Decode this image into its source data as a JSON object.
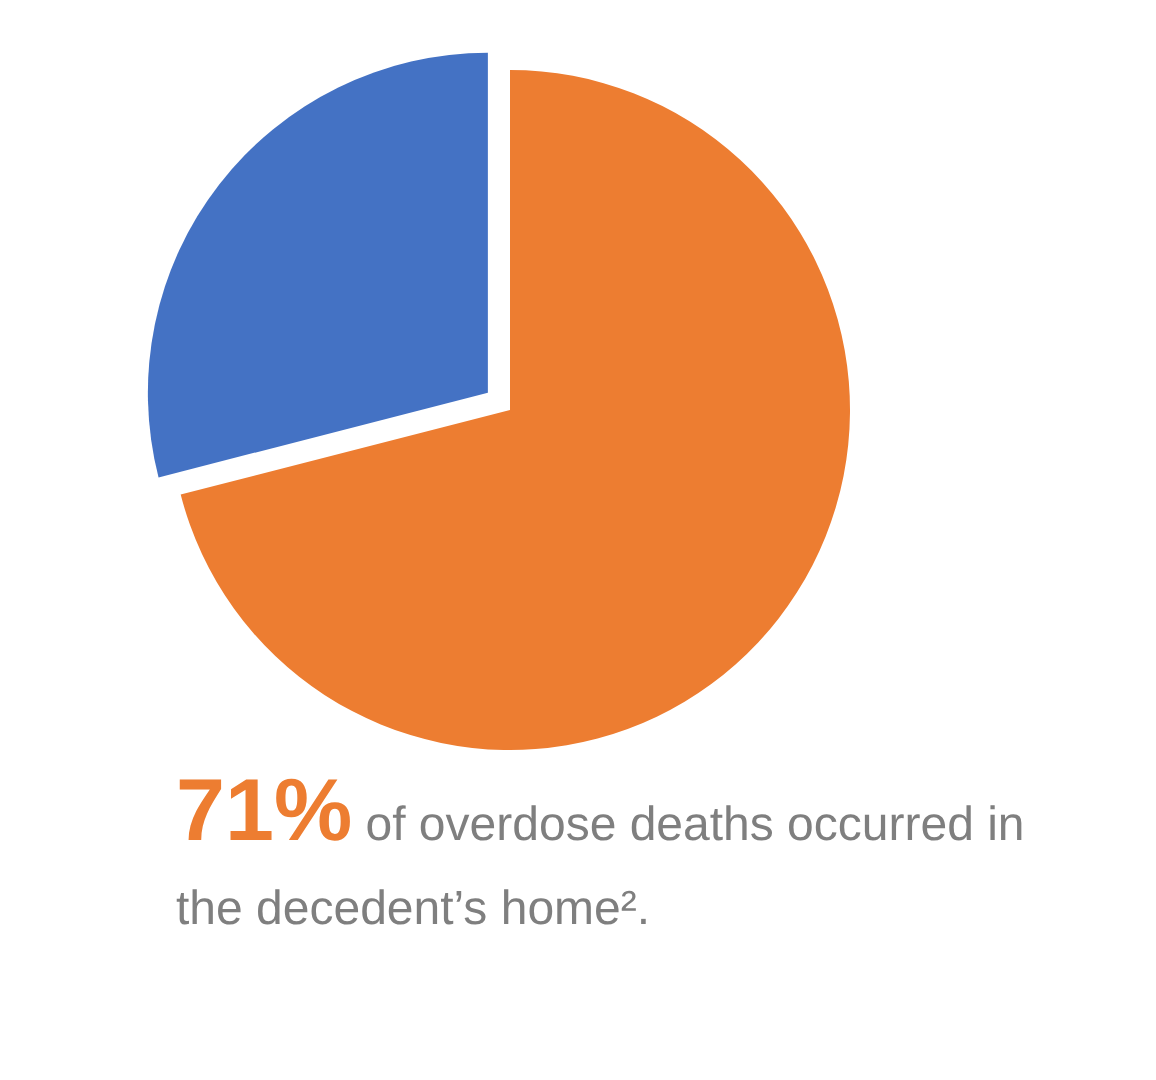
{
  "chart_data": {
    "type": "pie",
    "categories": [
      null,
      null
    ],
    "values": [
      71,
      29
    ],
    "colors": [
      "#ed7d31",
      "#4472c4"
    ],
    "annotations": [
      "71%",
      "of overdose deaths occurred in the decedent’s home²."
    ]
  }
}
